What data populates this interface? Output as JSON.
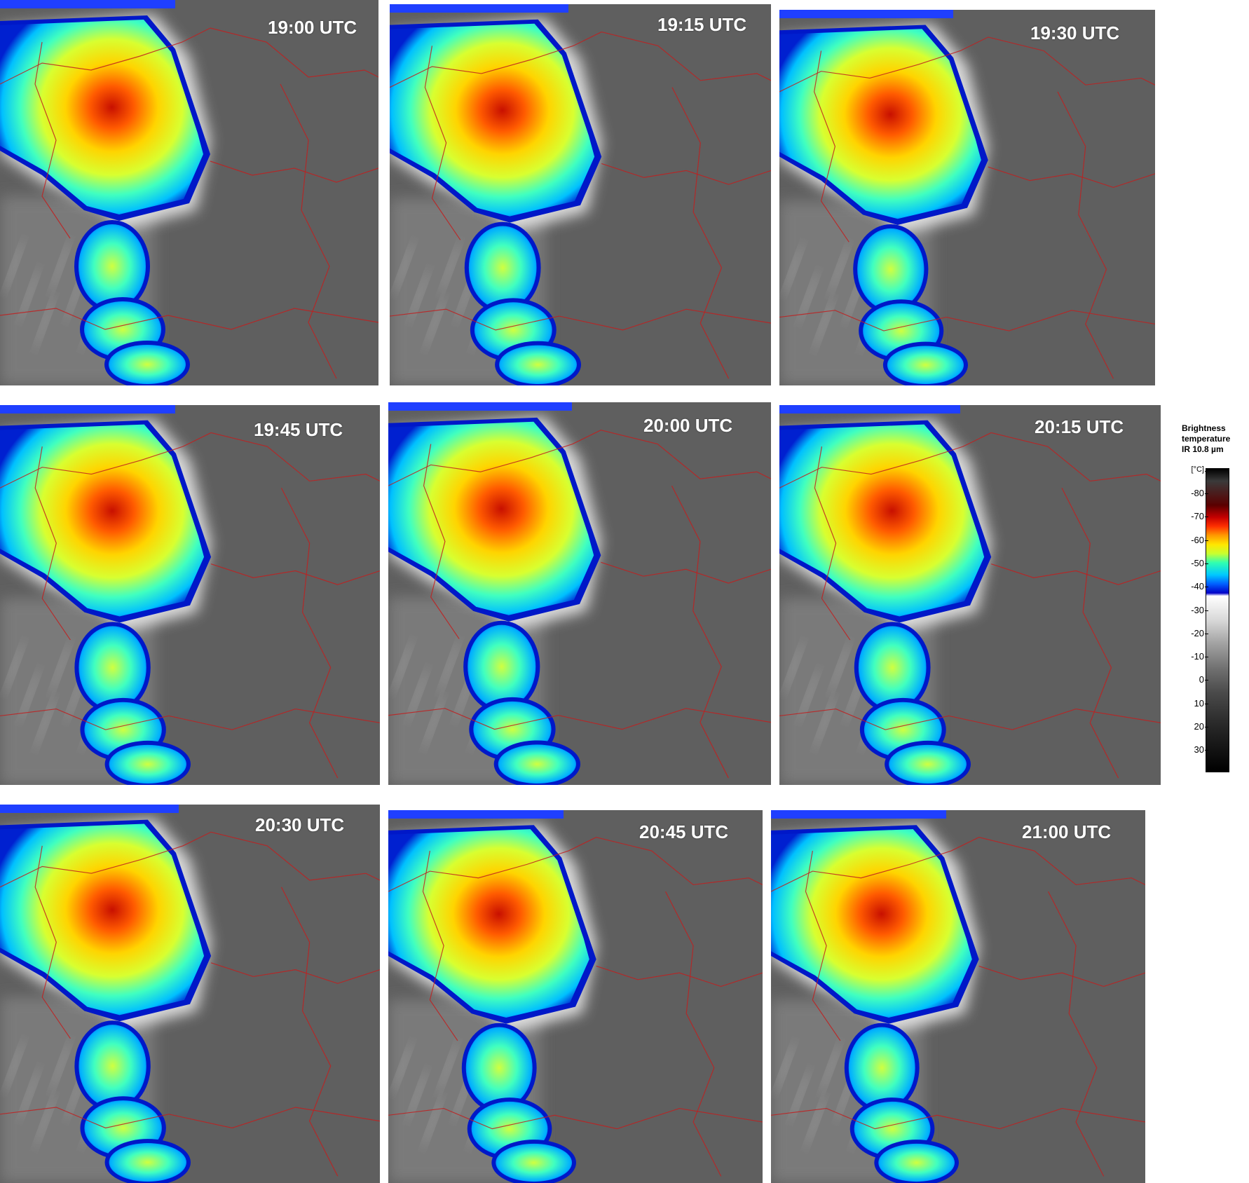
{
  "panels": [
    {
      "time": "19:00 UTC"
    },
    {
      "time": "19:15 UTC"
    },
    {
      "time": "19:30 UTC"
    },
    {
      "time": "19:45 UTC"
    },
    {
      "time": "20:00 UTC"
    },
    {
      "time": "20:15 UTC"
    },
    {
      "time": "20:30 UTC"
    },
    {
      "time": "20:45 UTC"
    },
    {
      "time": "21:00 UTC"
    }
  ],
  "legend": {
    "title_line1": "Brightness",
    "title_line2": "temperature",
    "title_line3": "IR 10.8 µm",
    "unit": "[°C]",
    "ticks": [
      "-80",
      "-70",
      "-60",
      "-50",
      "-40",
      "-30",
      "-20",
      "-10",
      "0",
      "10",
      "20",
      "30"
    ]
  },
  "colors": {
    "background_cloud_gray": "#6b6b6b",
    "cold_core_red": "#d81800",
    "mid_yellow": "#ffe600",
    "cyan": "#20e8ff",
    "edge_blue": "#0010c8",
    "border_lines": "#c02020",
    "header_bar": "#1f3fff"
  }
}
